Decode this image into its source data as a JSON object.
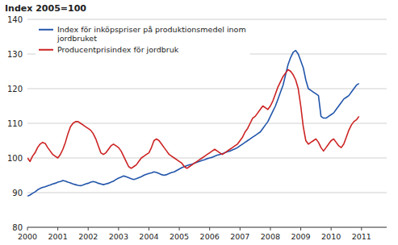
{
  "chart_data": {
    "type": "line",
    "title": "Index 2005=100",
    "x": [
      2000,
      2000.0833333333,
      2000.1666666667,
      2000.25,
      2000.3333333333,
      2000.4166666667,
      2000.5,
      2000.5833333333,
      2000.6666666667,
      2000.75,
      2000.8333333333,
      2000.9166666667,
      2001,
      2001.0833333333,
      2001.1666666667,
      2001.25,
      2001.3333333333,
      2001.4166666667,
      2001.5,
      2001.5833333333,
      2001.6666666667,
      2001.75,
      2001.8333333333,
      2001.9166666667,
      2002,
      2002.0833333333,
      2002.1666666667,
      2002.25,
      2002.3333333333,
      2002.4166666667,
      2002.5,
      2002.5833333333,
      2002.6666666667,
      2002.75,
      2002.8333333333,
      2002.9166666667,
      2003,
      2003.0833333333,
      2003.1666666667,
      2003.25,
      2003.3333333333,
      2003.4166666667,
      2003.5,
      2003.5833333333,
      2003.6666666667,
      2003.75,
      2003.8333333333,
      2003.9166666667,
      2004,
      2004.0833333333,
      2004.1666666667,
      2004.25,
      2004.3333333333,
      2004.4166666667,
      2004.5,
      2004.5833333333,
      2004.6666666667,
      2004.75,
      2004.8333333333,
      2004.9166666667,
      2005,
      2005.0833333333,
      2005.1666666667,
      2005.25,
      2005.3333333333,
      2005.4166666667,
      2005.5,
      2005.5833333333,
      2005.6666666667,
      2005.75,
      2005.8333333333,
      2005.9166666667,
      2006,
      2006.0833333333,
      2006.1666666667,
      2006.25,
      2006.3333333333,
      2006.4166666667,
      2006.5,
      2006.5833333333,
      2006.6666666667,
      2006.75,
      2006.8333333333,
      2006.9166666667,
      2007,
      2007.0833333333,
      2007.1666666667,
      2007.25,
      2007.3333333333,
      2007.4166666667,
      2007.5,
      2007.5833333333,
      2007.6666666667,
      2007.75,
      2007.8333333333,
      2007.9166666667,
      2008,
      2008.0833333333,
      2008.1666666667,
      2008.25,
      2008.3333333333,
      2008.4166666667,
      2008.5,
      2008.5833333333,
      2008.6666666667,
      2008.75,
      2008.8333333333,
      2008.9166666667,
      2009,
      2009.0833333333,
      2009.1666666667,
      2009.25,
      2009.3333333333,
      2009.4166666667,
      2009.5,
      2009.5833333333,
      2009.6666666667,
      2009.75,
      2009.8333333333,
      2009.9166666667,
      2010,
      2010.0833333333,
      2010.1666666667,
      2010.25,
      2010.3333333333,
      2010.4166666667,
      2010.5,
      2010.5833333333,
      2010.6666666667,
      2010.75,
      2010.8333333333,
      2010.9166666667
    ],
    "series": [
      {
        "name": "Index för inköpspriser på produktionsmedel inom\njordbruket",
        "color": "#2255aa",
        "values": [
          89.0,
          89.3,
          89.8,
          90.2,
          90.8,
          91.2,
          91.5,
          91.7,
          92.0,
          92.2,
          92.5,
          92.7,
          93.0,
          93.2,
          93.5,
          93.3,
          93.0,
          92.8,
          92.5,
          92.3,
          92.1,
          92.0,
          92.2,
          92.5,
          92.7,
          93.0,
          93.2,
          93.0,
          92.7,
          92.5,
          92.3,
          92.5,
          92.7,
          93.0,
          93.3,
          93.8,
          94.2,
          94.5,
          94.8,
          94.6,
          94.3,
          94.0,
          93.8,
          94.0,
          94.3,
          94.6,
          95.0,
          95.3,
          95.5,
          95.7,
          96.0,
          95.8,
          95.5,
          95.2,
          95.0,
          95.2,
          95.5,
          95.8,
          96.0,
          96.4,
          96.8,
          97.2,
          97.5,
          97.8,
          98.0,
          98.2,
          98.5,
          98.8,
          99.0,
          99.3,
          99.5,
          99.8,
          100.0,
          100.2,
          100.5,
          100.8,
          101.0,
          101.2,
          101.5,
          101.8,
          102.0,
          102.3,
          102.6,
          103.0,
          103.5,
          104.0,
          104.5,
          105.0,
          105.5,
          106.0,
          106.5,
          107.0,
          107.5,
          108.5,
          109.5,
          110.5,
          112.0,
          113.5,
          115.0,
          117.0,
          119.0,
          121.0,
          124.0,
          127.0,
          129.0,
          130.5,
          131.0,
          130.0,
          128.0,
          126.0,
          122.5,
          120.0,
          119.5,
          119.0,
          118.5,
          118.0,
          112.0,
          111.5,
          111.5,
          112.0,
          112.5,
          113.0,
          114.0,
          115.0,
          116.0,
          117.0,
          117.5,
          118.0,
          119.0,
          120.0,
          121.0,
          121.5
        ]
      },
      {
        "name": "Producentprisindex för jordbruk",
        "color": "#cc2222",
        "values": [
          100.0,
          99.0,
          100.5,
          101.5,
          103.0,
          104.0,
          104.5,
          104.2,
          103.0,
          102.0,
          101.0,
          100.5,
          100.0,
          101.0,
          102.5,
          104.5,
          107.0,
          109.0,
          110.0,
          110.5,
          110.5,
          110.0,
          109.5,
          109.0,
          108.5,
          108.0,
          107.0,
          105.5,
          103.5,
          101.5,
          101.0,
          101.5,
          102.5,
          103.5,
          104.0,
          103.5,
          103.0,
          102.0,
          100.5,
          99.0,
          97.5,
          97.0,
          97.5,
          98.0,
          99.0,
          100.0,
          100.5,
          101.0,
          101.5,
          103.0,
          105.0,
          105.5,
          105.0,
          104.0,
          103.0,
          102.0,
          101.0,
          100.5,
          100.0,
          99.5,
          99.0,
          98.5,
          97.5,
          97.0,
          97.5,
          98.0,
          98.5,
          99.0,
          99.5,
          100.0,
          100.5,
          101.0,
          101.5,
          102.0,
          102.5,
          102.0,
          101.5,
          101.0,
          101.5,
          102.0,
          102.5,
          103.0,
          103.5,
          104.0,
          105.0,
          106.0,
          107.5,
          108.5,
          110.0,
          111.5,
          112.0,
          113.0,
          114.0,
          115.0,
          114.5,
          114.0,
          115.0,
          116.5,
          118.5,
          120.5,
          122.0,
          123.5,
          124.5,
          125.5,
          125.0,
          124.0,
          122.5,
          120.0,
          115.0,
          109.0,
          105.0,
          104.0,
          104.5,
          105.0,
          105.5,
          104.5,
          103.0,
          102.0,
          103.0,
          104.0,
          105.0,
          105.5,
          104.5,
          103.5,
          103.0,
          104.0,
          106.0,
          108.0,
          109.5,
          110.5,
          111.0,
          112.0
        ]
      }
    ],
    "xlim": [
      2000.0,
      2011.83
    ],
    "ylim": [
      80,
      140
    ],
    "xticks": [
      2000,
      2001,
      2002,
      2003,
      2004,
      2005,
      2006,
      2007,
      2008,
      2009,
      2010,
      2011
    ],
    "yticks": [
      80,
      90,
      100,
      110,
      120,
      130,
      140
    ],
    "grid": true,
    "legend": "upper left",
    "color": "#ffffff"
  }
}
